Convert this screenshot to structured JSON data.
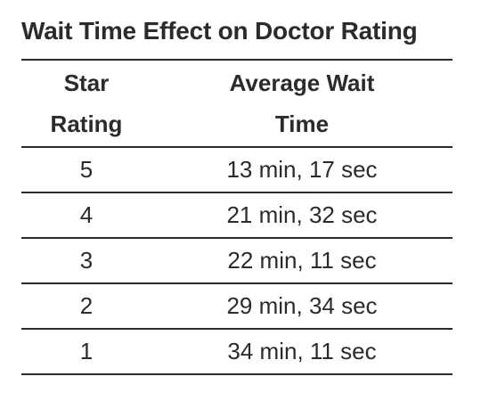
{
  "chart_data": {
    "type": "table",
    "title": "Wait Time Effect on Doctor Rating",
    "columns": [
      [
        "Star",
        "Rating"
      ],
      [
        "Average Wait",
        "Time"
      ]
    ],
    "rows": [
      {
        "rating": "5",
        "wait": "13 min, 17 sec"
      },
      {
        "rating": "4",
        "wait": "21 min, 32 sec"
      },
      {
        "rating": "3",
        "wait": "22 min, 11 sec"
      },
      {
        "rating": "2",
        "wait": "29 min, 34 sec"
      },
      {
        "rating": "1",
        "wait": "34 min, 11 sec"
      }
    ]
  }
}
